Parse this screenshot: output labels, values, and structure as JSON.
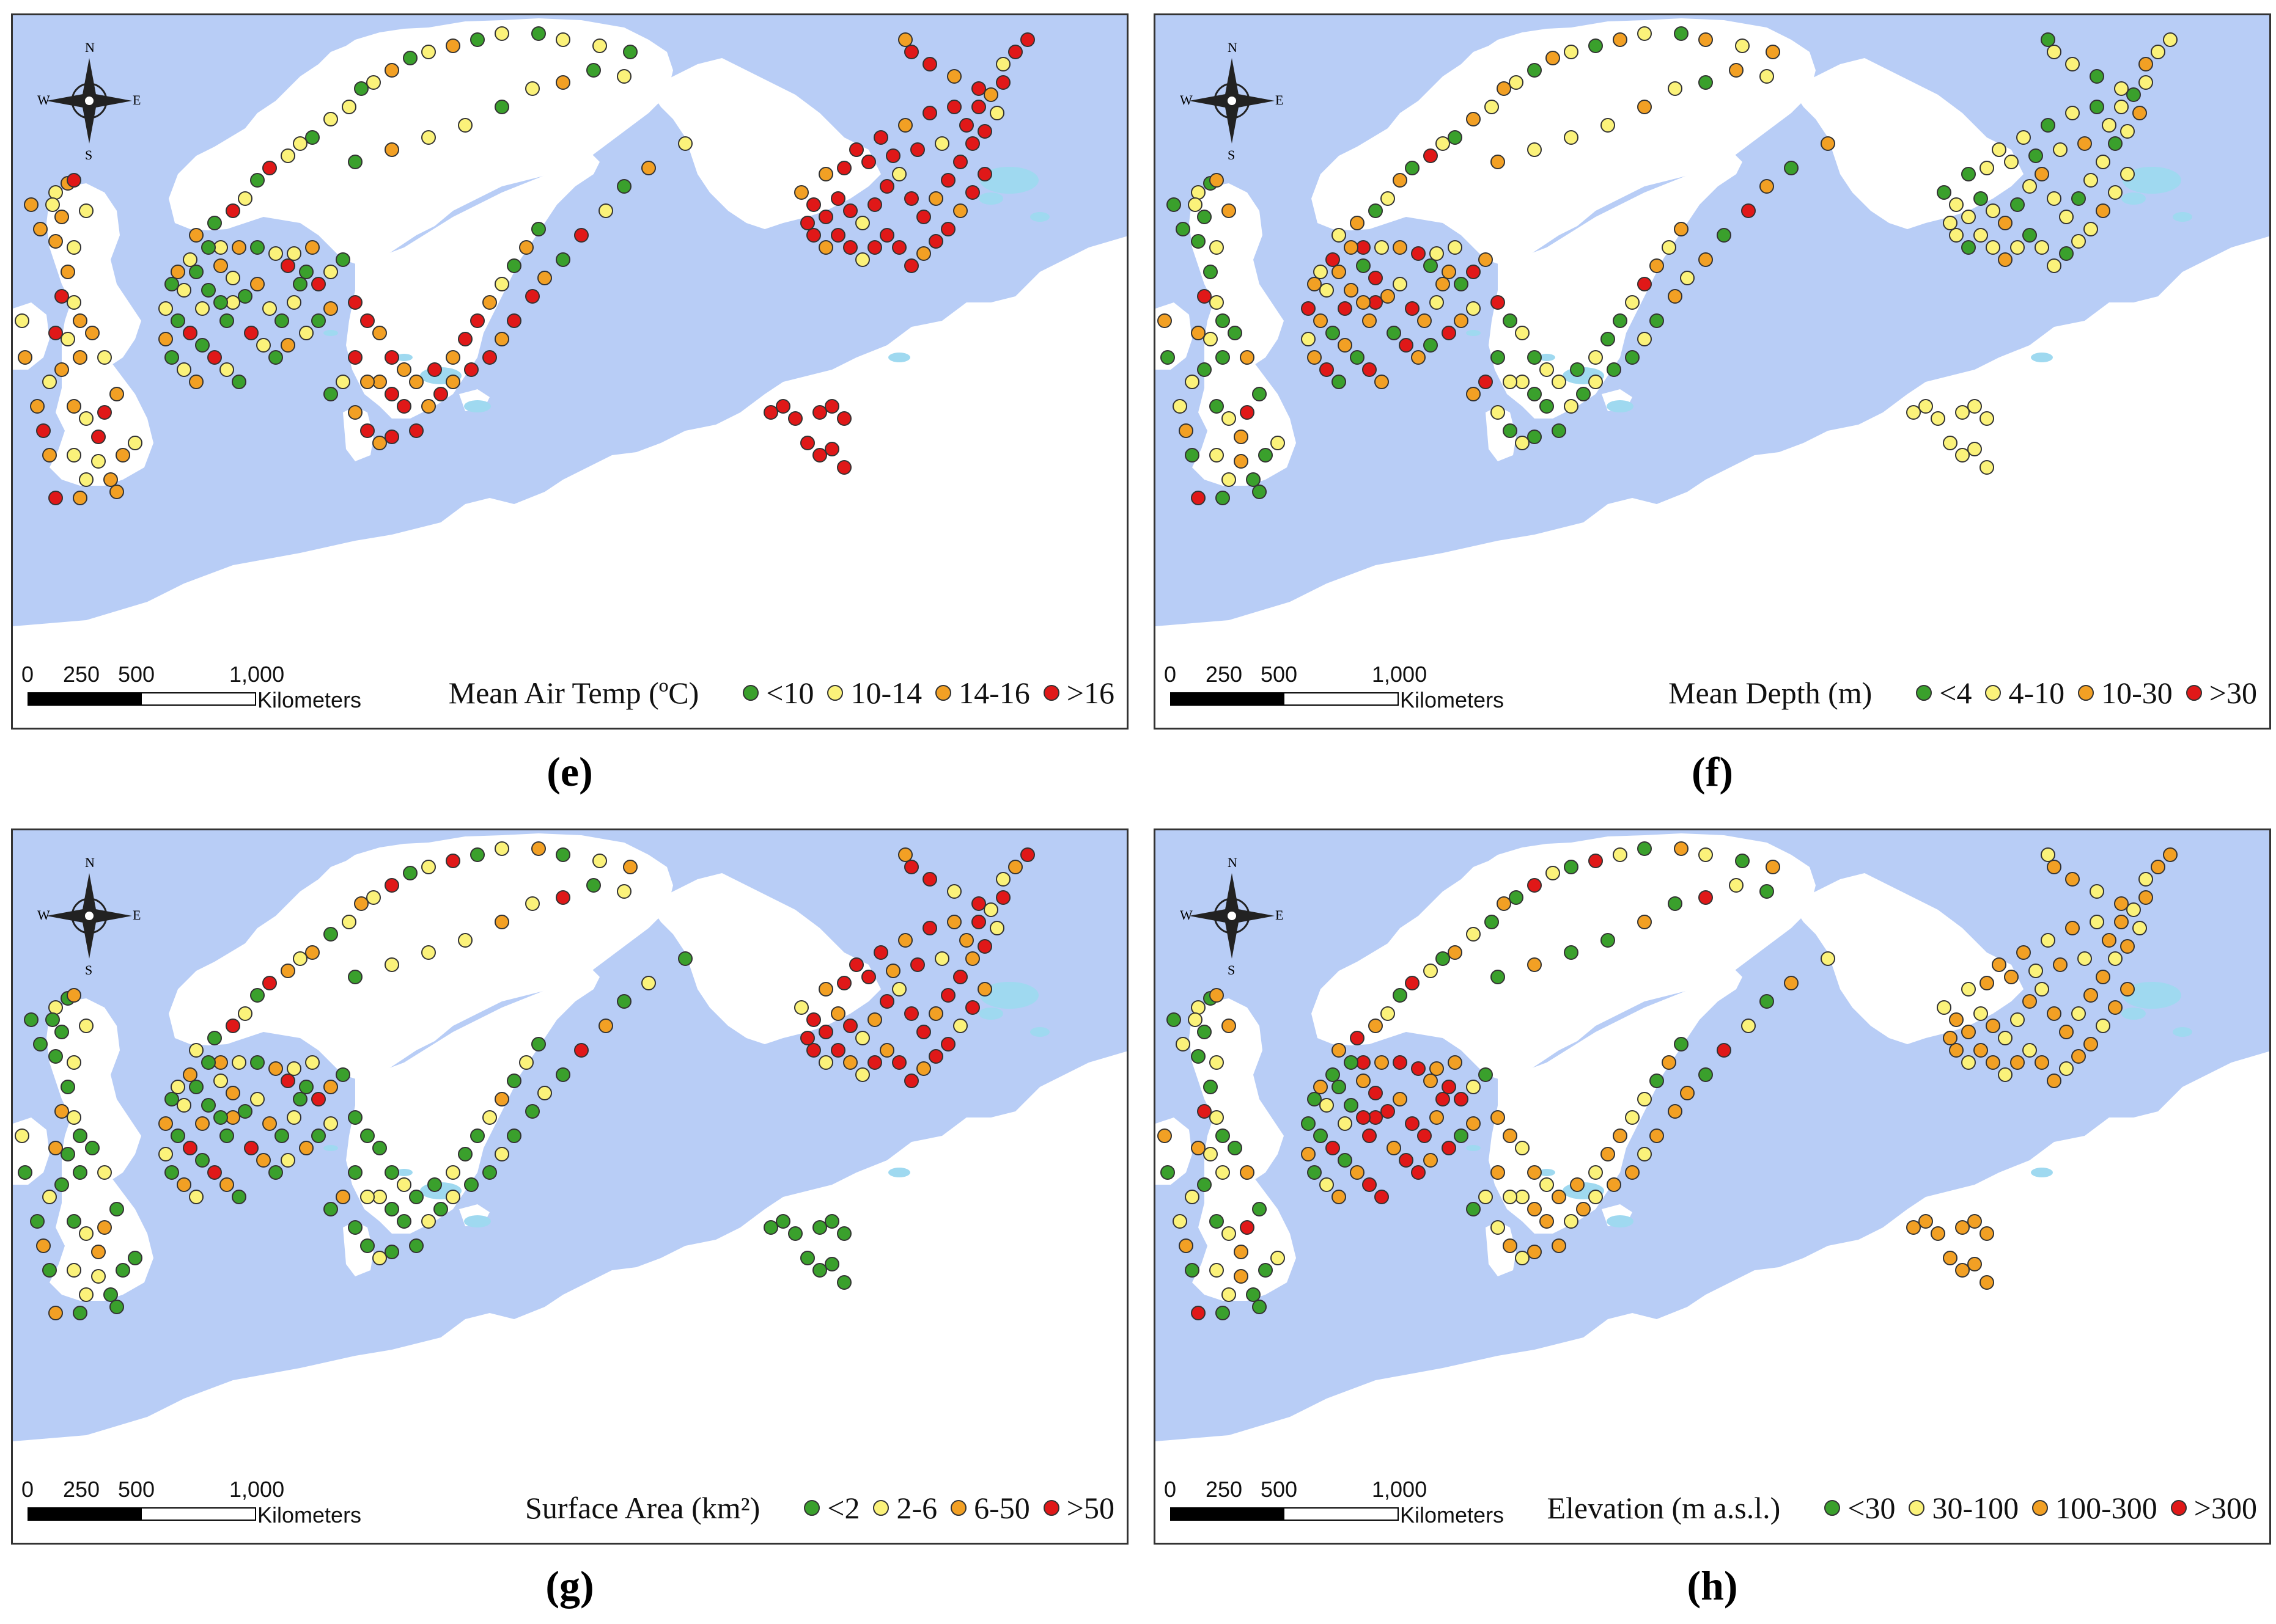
{
  "panels": [
    {
      "id": "e",
      "caption": "(e)",
      "legend_title": "Mean Air Temp (ºC)",
      "classes": [
        "<10",
        "10-14",
        "14-16",
        ">16"
      ],
      "class_colors": [
        "#3aa02c",
        "#fbf27a",
        "#f2a024",
        "#e01818"
      ],
      "scheme": "temp"
    },
    {
      "id": "f",
      "caption": "(f)",
      "legend_title": "Mean Depth (m)",
      "classes": [
        "<4",
        "4-10",
        "10-30",
        ">30"
      ],
      "class_colors": [
        "#3aa02c",
        "#fbf27a",
        "#f2a024",
        "#e01818"
      ],
      "scheme": "depth"
    },
    {
      "id": "g",
      "caption": "(g)",
      "legend_title": "Surface Area (km²)",
      "classes": [
        "<2",
        "2-6",
        "6-50",
        ">50"
      ],
      "class_colors": [
        "#3aa02c",
        "#fbf27a",
        "#f2a024",
        "#e01818"
      ],
      "scheme": "area"
    },
    {
      "id": "h",
      "caption": "(h)",
      "legend_title": "Elevation (m a.s.l.)",
      "classes": [
        "<30",
        "30-100",
        "100-300",
        ">300"
      ],
      "class_colors": [
        "#3aa02c",
        "#fbf27a",
        "#f2a024",
        "#e01818"
      ],
      "scheme": "elev"
    }
  ],
  "scale_bar": {
    "ticks": [
      "0",
      "250",
      "500",
      "1,000"
    ],
    "unit": "Kilometers"
  },
  "compass": {
    "n": "N",
    "s": "S",
    "e": "E",
    "w": "W"
  },
  "colors": {
    "sea": "#b8cdf6",
    "land": "#ffffff",
    "lakes": "#9fd9f0"
  }
}
